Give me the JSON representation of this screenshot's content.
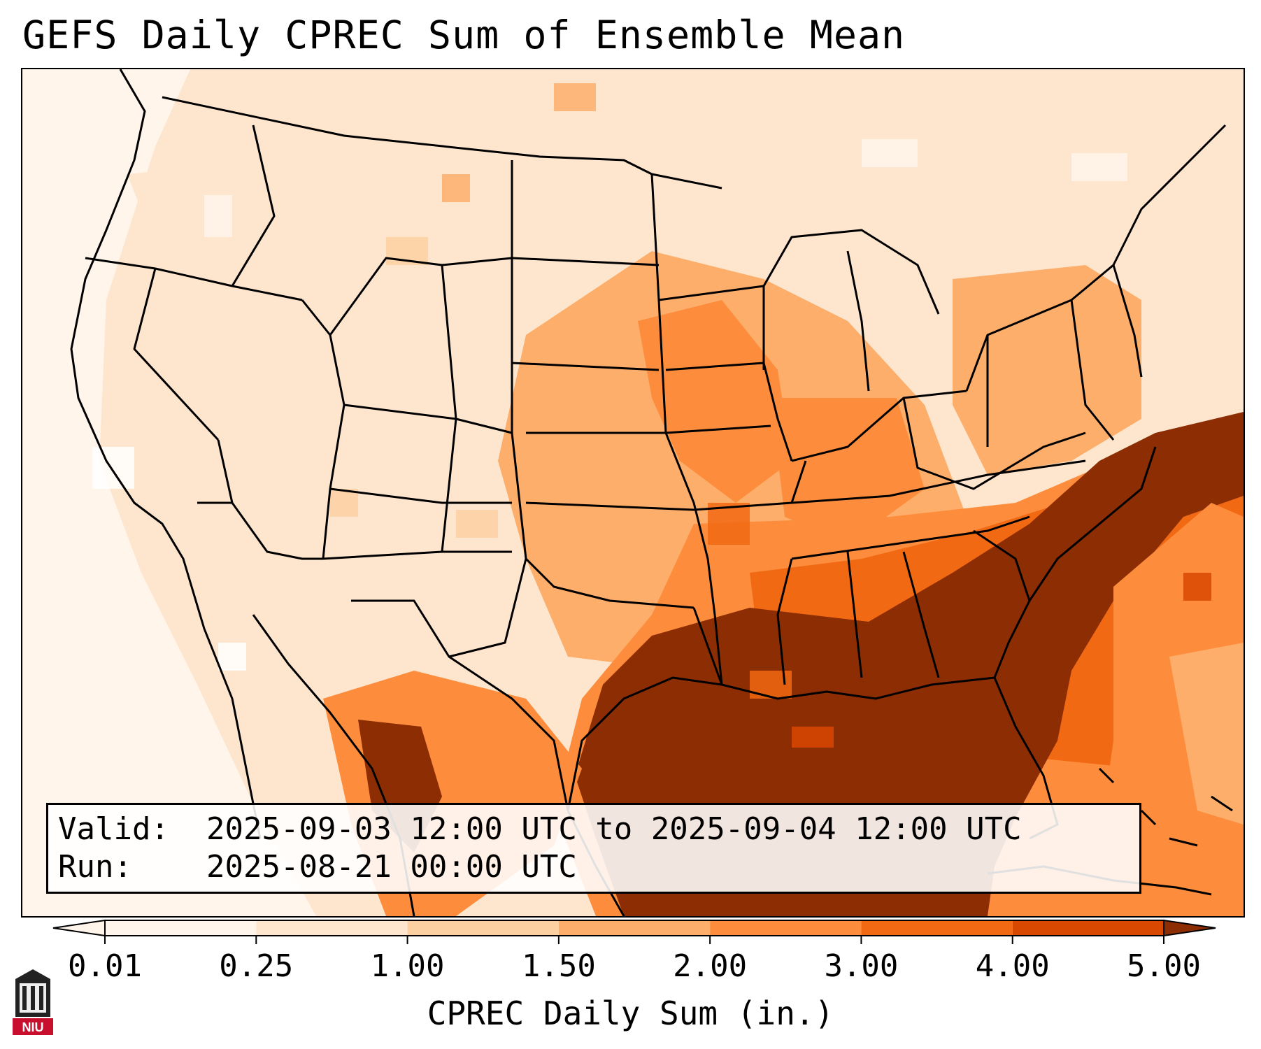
{
  "title": "GEFS Daily CPREC Sum of Ensemble Mean",
  "info": {
    "valid_label": "Valid:",
    "valid_value": "2025-09-03 12:00 UTC to 2025-09-04 12:00 UTC",
    "run_label": "Run:",
    "run_value": "2025-08-21 00:00 UTC"
  },
  "colorbar": {
    "title": "CPREC Daily Sum (in.)",
    "ticks": [
      "0.01",
      "0.25",
      "1.00",
      "1.50",
      "2.00",
      "3.00",
      "4.00",
      "5.00"
    ],
    "colors": [
      "#fff5eb",
      "#fee6ce",
      "#fdd0a2",
      "#fdae6b",
      "#fd8d3c",
      "#f16913",
      "#d94801",
      "#8c2d04"
    ],
    "extend": "both"
  },
  "logo": {
    "text": "NIU",
    "color": "#c8102e"
  },
  "legend_colors": {
    "lowest": "#fff5eb",
    "highest": "#8c2d04"
  }
}
